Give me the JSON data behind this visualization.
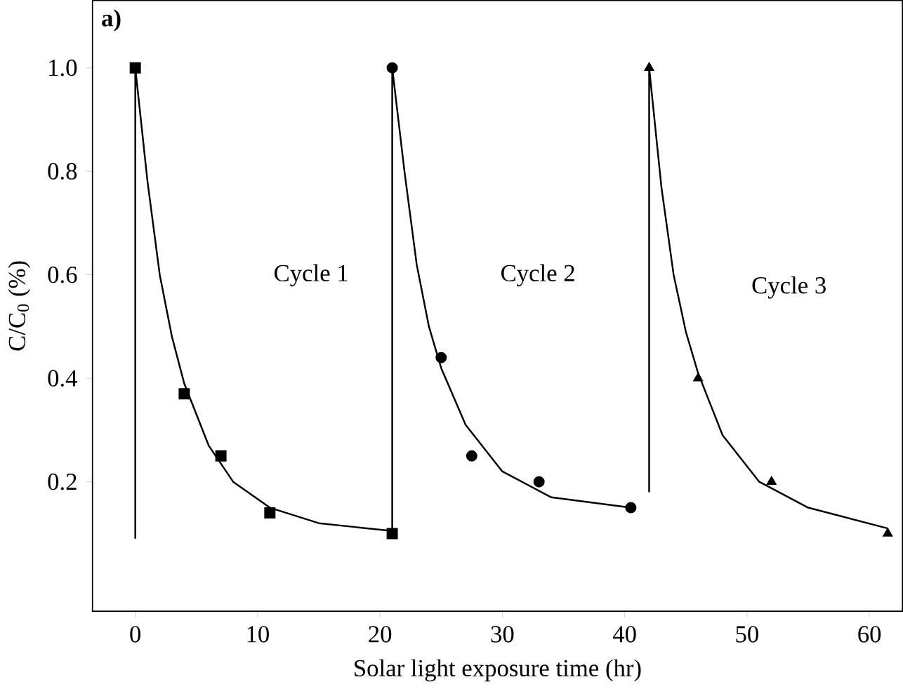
{
  "chart_data": {
    "type": "scatter",
    "xlabel": "Solar light exposure time (hr)",
    "ylabel": "C/C$_{0}$ (%)",
    "xlim": [
      -3.5,
      62.7
    ],
    "ylim": [
      -0.05,
      1.13
    ],
    "xticks": [
      0,
      10,
      20,
      30,
      40,
      50,
      60
    ],
    "yticks": [
      0.2,
      0.4,
      0.6,
      0.8,
      {
        "value": 1,
        "label": "1.0"
      }
    ],
    "annotations": [
      "a)",
      "Cycle 1",
      "Cycle 2",
      "Cycle 3"
    ],
    "series": [
      {
        "type": "line",
        "color": "#000000",
        "marker": "none",
        "x": [
          0,
          0,
          1,
          2,
          3,
          4,
          6,
          8,
          11,
          15,
          21
        ],
        "values": [
          0.09,
          1.0,
          0.78,
          0.6,
          0.48,
          0.39,
          0.27,
          0.2,
          0.15,
          0.12,
          0.105
        ]
      },
      {
        "type": "line",
        "color": "#000000",
        "marker": "none",
        "x": [
          21,
          21,
          22,
          23,
          24,
          25,
          27,
          30,
          34,
          40.5
        ],
        "values": [
          0.1,
          1.0,
          0.8,
          0.62,
          0.5,
          0.42,
          0.31,
          0.22,
          0.17,
          0.15
        ]
      },
      {
        "type": "line",
        "color": "#000000",
        "marker": "none",
        "x": [
          42,
          42,
          43,
          44,
          45,
          46,
          48,
          51,
          55,
          61.5
        ],
        "values": [
          0.18,
          1.0,
          0.77,
          0.6,
          0.49,
          0.41,
          0.29,
          0.2,
          0.15,
          0.11
        ]
      },
      {
        "color": "#000000",
        "marker": "square",
        "x": [
          0,
          4,
          7,
          11,
          21
        ],
        "values": [
          1.0,
          0.37,
          0.25,
          0.14,
          0.1
        ]
      },
      {
        "color": "#000000",
        "marker": "circle",
        "x": [
          21,
          25,
          27.5,
          33,
          40.5
        ],
        "values": [
          1.0,
          0.44,
          0.25,
          0.2,
          0.15
        ]
      },
      {
        "color": "#000000",
        "marker": "triangle",
        "x": [
          42,
          46,
          52,
          61.5
        ],
        "values": [
          1.0,
          0.4,
          0.2,
          0.1
        ]
      }
    ]
  }
}
